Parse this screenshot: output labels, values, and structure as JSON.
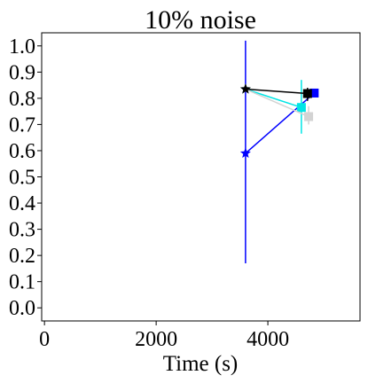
{
  "chart_data": {
    "type": "scatter",
    "title": "10% noise",
    "xlabel": "Time (s)",
    "ylabel": "",
    "xlim": [
      -50,
      5650
    ],
    "ylim": [
      -0.05,
      1.05
    ],
    "x_ticks": [
      0,
      2000,
      4000
    ],
    "x_tick_labels": [
      "0",
      "2000",
      "4000"
    ],
    "y_ticks": [
      0.0,
      0.1,
      0.2,
      0.3,
      0.4,
      0.5,
      0.6,
      0.7,
      0.8,
      0.9,
      1.0
    ],
    "y_tick_labels": [
      "0.0",
      "0.1",
      "0.2",
      "0.3",
      "0.4",
      "0.5",
      "0.6",
      "0.7",
      "0.8",
      "0.9",
      "1.0"
    ],
    "grid": false,
    "series": [
      {
        "color": "#0000ff",
        "points": [
          {
            "x": 3600,
            "y": 0.59,
            "marker": "star",
            "yerr": [
              0.17,
              1.02
            ]
          },
          {
            "x": 4830,
            "y": 0.82,
            "marker": "square"
          }
        ]
      },
      {
        "color": "#00e5e5",
        "points": [
          {
            "x": 3600,
            "y": 0.835,
            "marker": "star"
          },
          {
            "x": 4600,
            "y": 0.765,
            "marker": "square",
            "yerr": [
              0.665,
              0.87
            ]
          }
        ]
      },
      {
        "color": "#d3d3d3",
        "points": [
          {
            "x": 3600,
            "y": 0.835,
            "marker": "star"
          },
          {
            "x": 4730,
            "y": 0.73,
            "marker": "square",
            "yerr": [
              0.7,
              0.77
            ]
          }
        ]
      },
      {
        "color": "#000000",
        "points": [
          {
            "x": 3600,
            "y": 0.835,
            "marker": "star"
          },
          {
            "x": 4710,
            "y": 0.818,
            "marker": "square",
            "yerr": [
              0.79,
              0.84
            ]
          }
        ]
      }
    ]
  }
}
